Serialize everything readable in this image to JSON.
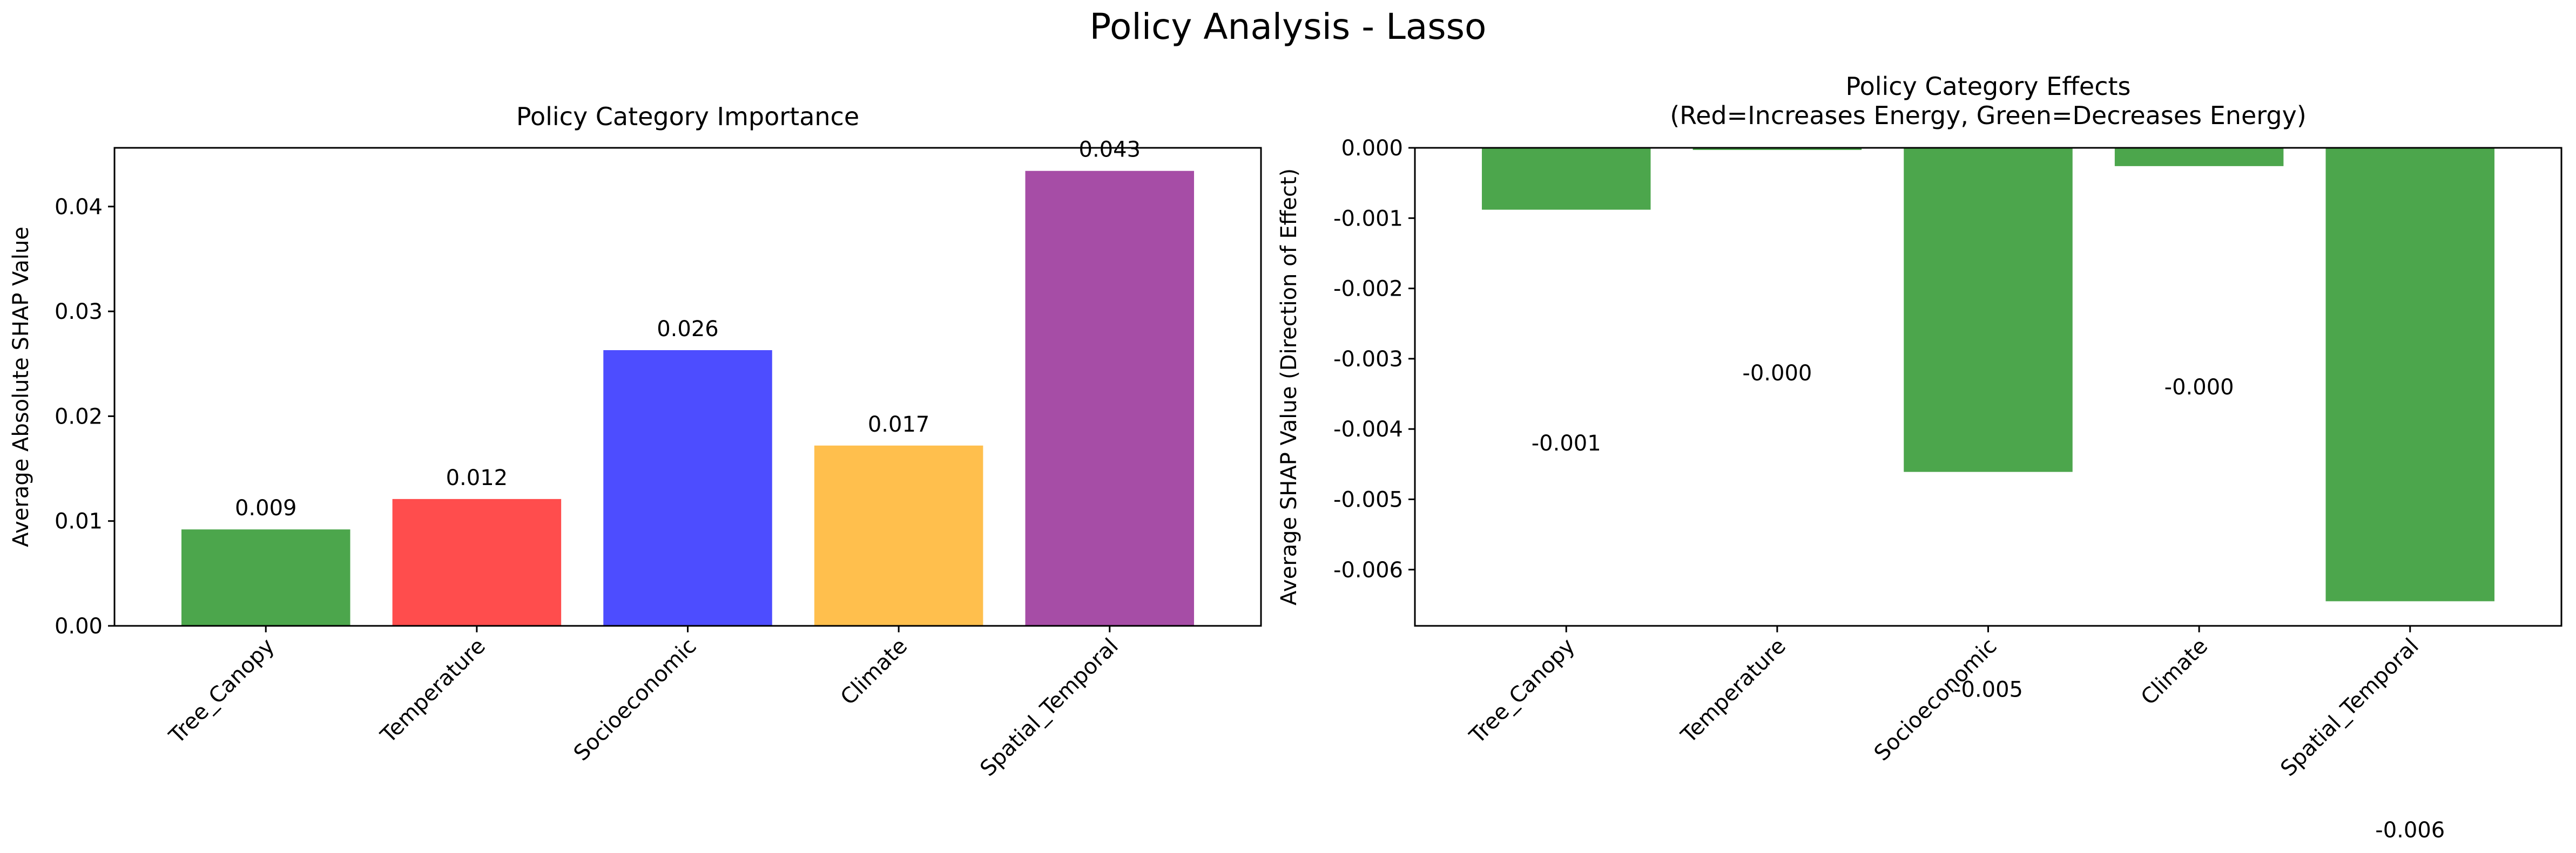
{
  "suptitle": "Policy Analysis - Lasso",
  "chart_data": [
    {
      "type": "bar",
      "title": "Policy Category Importance",
      "xlabel": "",
      "ylabel": "Average Absolute SHAP Value",
      "categories": [
        "Tree_Canopy",
        "Temperature",
        "Socioeconomic",
        "Climate",
        "Spatial_Temporal"
      ],
      "values": [
        0.0092,
        0.0121,
        0.0263,
        0.0172,
        0.0434
      ],
      "value_labels": [
        "0.009",
        "0.012",
        "0.026",
        "0.017",
        "0.043"
      ],
      "colors": [
        "#4ca64c",
        "#ff4d4d",
        "#4d4dff",
        "#ffbf4d",
        "#a64da6"
      ],
      "ylim": [
        0,
        0.0456
      ],
      "yticks": [
        0.0,
        0.01,
        0.02,
        0.03,
        0.04
      ],
      "ytick_labels": [
        "0.00",
        "0.01",
        "0.02",
        "0.03",
        "0.04"
      ],
      "grid": false
    },
    {
      "type": "bar",
      "title_lines": [
        "Policy Category Effects",
        "(Red=Increases Energy, Green=Decreases Energy)"
      ],
      "xlabel": "",
      "ylabel": "Average SHAP Value (Direction of Effect)",
      "categories": [
        "Tree_Canopy",
        "Temperature",
        "Socioeconomic",
        "Climate",
        "Spatial_Temporal"
      ],
      "values": [
        -0.00088,
        -3e-05,
        -0.00461,
        -0.00026,
        -0.00645
      ],
      "value_labels": [
        "-0.001",
        "-0.000",
        "-0.005",
        "-0.000",
        "-0.006"
      ],
      "value_label_y": [
        -0.0042,
        -0.0032,
        -0.0077,
        -0.0034,
        -0.0097
      ],
      "colors": [
        "#4ca64c",
        "#4ca64c",
        "#4ca64c",
        "#4ca64c",
        "#4ca64c"
      ],
      "ylim": [
        -0.0068,
        0.0
      ],
      "yticks": [
        0.0,
        -0.001,
        -0.002,
        -0.003,
        -0.004,
        -0.005,
        -0.006
      ],
      "ytick_labels": [
        "0.000",
        "-0.001",
        "-0.002",
        "-0.003",
        "-0.004",
        "-0.005",
        "-0.006"
      ],
      "grid": false
    }
  ]
}
